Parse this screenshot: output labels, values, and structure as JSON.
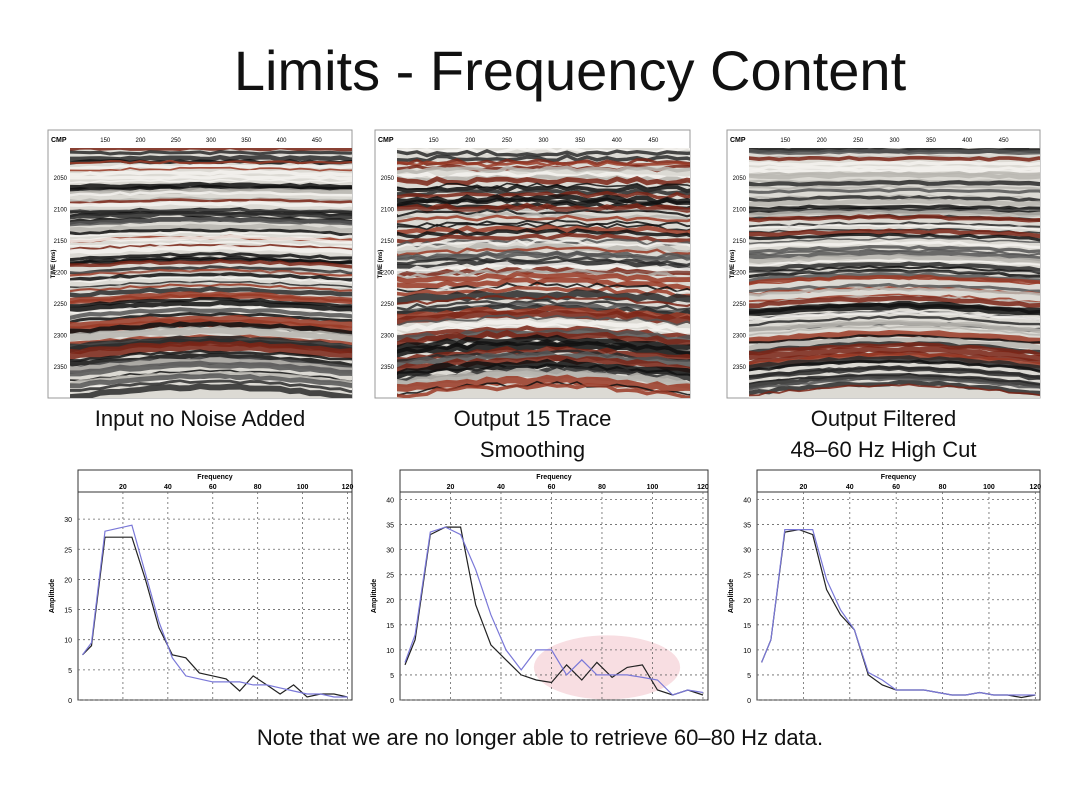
{
  "title": "Limits  - Frequency Content",
  "panels": [
    {
      "caption": [
        "Input no Noise Added"
      ],
      "cmp_label": "CMP",
      "time_label": "TIME (ms)",
      "cmp_ticks": [
        "150",
        "200",
        "250",
        "300",
        "350",
        "400",
        "450"
      ],
      "time_ticks": [
        "2050",
        "2100",
        "2150",
        "2200",
        "2250",
        "2300",
        "2350"
      ]
    },
    {
      "caption": [
        "Output  15 Trace",
        "Smoothing"
      ],
      "cmp_label": "CMP",
      "time_label": "TIME (ms)",
      "cmp_ticks": [
        "150",
        "200",
        "250",
        "300",
        "350",
        "400",
        "450"
      ],
      "time_ticks": [
        "2050",
        "2100",
        "2150",
        "2200",
        "2250",
        "2300",
        "2350"
      ]
    },
    {
      "caption": [
        "Output  Filtered",
        "48–60 Hz High Cut"
      ],
      "cmp_label": "CMP",
      "time_label": "TIME (ms)",
      "cmp_ticks": [
        "150",
        "200",
        "250",
        "300",
        "350",
        "400",
        "450"
      ],
      "time_ticks": [
        "2050",
        "2100",
        "2150",
        "2200",
        "2250",
        "2300",
        "2350"
      ]
    }
  ],
  "chart_data": [
    {
      "type": "line",
      "x_label": "Frequency",
      "y_label": "Amplitude",
      "xlim": [
        0,
        122
      ],
      "ylim": [
        0,
        34.5
      ],
      "xticks": [
        20,
        40,
        60,
        80,
        100,
        120
      ],
      "yticks": [
        0,
        5,
        10,
        15,
        20,
        25,
        30
      ],
      "grid": true,
      "x": [
        2,
        6,
        12,
        18,
        24,
        30,
        36,
        42,
        48,
        54,
        60,
        66,
        72,
        78,
        84,
        90,
        96,
        102,
        108,
        114,
        120
      ],
      "series": [
        {
          "color": "#222222",
          "values": [
            7.5,
            9,
            27,
            27,
            27,
            20,
            12,
            7.5,
            7,
            4.5,
            4,
            3.5,
            1.5,
            4,
            2.5,
            1,
            2.5,
            0.5,
            1,
            1,
            0.5
          ]
        },
        {
          "color": "#7a78d8",
          "values": [
            7.5,
            9.5,
            28,
            28.5,
            29,
            21,
            13,
            7,
            4,
            3.5,
            3,
            3,
            3,
            2.5,
            2.5,
            2,
            1.5,
            1,
            1,
            0.5,
            0.5
          ]
        }
      ]
    },
    {
      "type": "line",
      "x_label": "Frequency",
      "y_label": "Amplitude",
      "xlim": [
        0,
        122
      ],
      "ylim": [
        0,
        41.5
      ],
      "xticks": [
        20,
        40,
        60,
        80,
        100,
        120
      ],
      "yticks": [
        0,
        5,
        10,
        15,
        20,
        25,
        30,
        35,
        40
      ],
      "grid": true,
      "highlight": true,
      "x": [
        2,
        6,
        12,
        18,
        24,
        30,
        36,
        42,
        48,
        54,
        60,
        66,
        72,
        78,
        84,
        90,
        96,
        102,
        108,
        114,
        120
      ],
      "series": [
        {
          "color": "#222222",
          "values": [
            7,
            12,
            33,
            34.5,
            34.5,
            19,
            11,
            8,
            5,
            4,
            3.5,
            7,
            4,
            7.5,
            4.5,
            6.5,
            7,
            2,
            1,
            2,
            1
          ]
        },
        {
          "color": "#7a78d8",
          "values": [
            7.5,
            13,
            33.5,
            34.5,
            33,
            26,
            17,
            10,
            6,
            10,
            10,
            5,
            8,
            5,
            5,
            5,
            4.5,
            4,
            1,
            2,
            1.5
          ]
        }
      ]
    },
    {
      "type": "line",
      "x_label": "Frequency",
      "y_label": "Amplitude",
      "xlim": [
        0,
        122
      ],
      "ylim": [
        0,
        41.5
      ],
      "xticks": [
        20,
        40,
        60,
        80,
        100,
        120
      ],
      "yticks": [
        0,
        5,
        10,
        15,
        20,
        25,
        30,
        35,
        40
      ],
      "grid": true,
      "x": [
        2,
        6,
        12,
        18,
        24,
        30,
        36,
        42,
        48,
        54,
        60,
        66,
        72,
        78,
        84,
        90,
        96,
        102,
        108,
        114,
        120
      ],
      "series": [
        {
          "color": "#222222",
          "values": [
            7.5,
            12,
            33.5,
            34,
            33,
            22,
            17,
            14,
            5,
            3,
            2,
            2,
            2,
            1.5,
            1,
            1,
            1.5,
            1,
            1,
            0.5,
            1
          ]
        },
        {
          "color": "#7a78d8",
          "values": [
            7.5,
            12,
            34,
            34,
            34,
            24,
            18,
            14,
            5.5,
            4,
            2,
            2,
            2,
            1.5,
            1,
            1,
            1.5,
            1,
            1,
            1,
            1
          ]
        }
      ]
    }
  ],
  "note": "Note that we are no longer able to retrieve 60–80 Hz data."
}
